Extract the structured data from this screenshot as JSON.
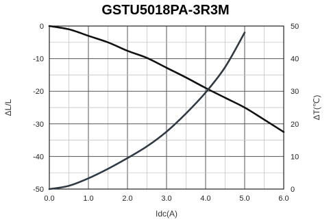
{
  "chart_data": {
    "type": "line",
    "title": "GSTU5018PA-3R3M",
    "xlabel": "Idc(A)",
    "ylabel_left": "ΔL/L",
    "ylabel_right": "ΔT(℃)",
    "xlim": [
      0,
      6
    ],
    "ylim_left": [
      -50,
      0
    ],
    "ylim_right": [
      0,
      50
    ],
    "x_ticks": [
      "0.0",
      "1.0",
      "2.0",
      "3.0",
      "4.0",
      "5.0",
      "6.0"
    ],
    "y_left_ticks": [
      "0",
      "-10",
      "-20",
      "-30",
      "-40",
      "-50"
    ],
    "y_right_ticks": [
      "50",
      "40",
      "30",
      "20",
      "10",
      "0"
    ],
    "grid": true,
    "series": [
      {
        "axis": "left",
        "color": "#111111",
        "x": [
          0,
          0.5,
          1.0,
          1.5,
          2.0,
          2.5,
          3.0,
          3.5,
          4.0,
          4.5,
          5.0,
          5.5,
          6.0
        ],
        "y": [
          0,
          -1,
          -3,
          -5,
          -7.6,
          -9.8,
          -12.8,
          -15.8,
          -19,
          -22,
          -25,
          -28.7,
          -32.5
        ]
      },
      {
        "axis": "right",
        "color": "#2f3a44",
        "x": [
          0,
          0.5,
          1.0,
          1.5,
          2.0,
          2.5,
          3.0,
          3.5,
          4.0,
          4.5,
          5.0
        ],
        "y": [
          0,
          1,
          3.3,
          6.2,
          9.5,
          13.1,
          17.6,
          23.2,
          29.6,
          37.4,
          48
        ]
      }
    ]
  }
}
